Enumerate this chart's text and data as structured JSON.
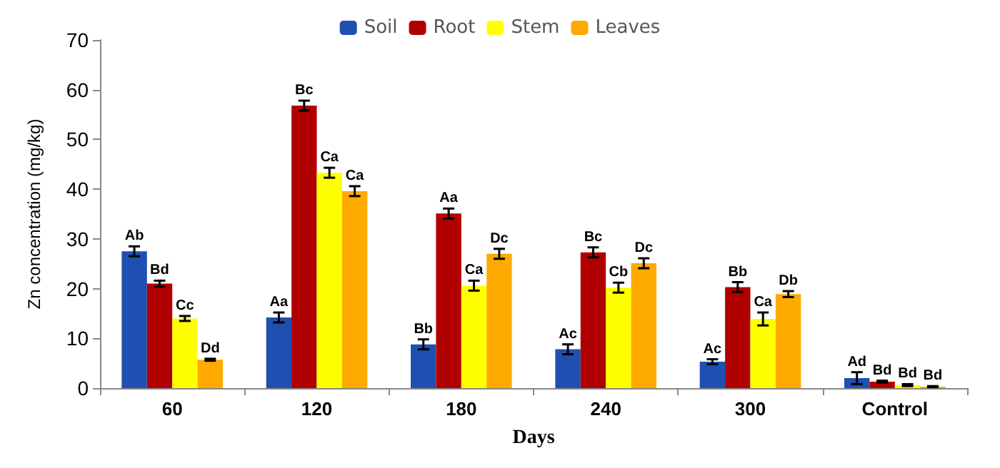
{
  "chart_data": {
    "type": "bar",
    "xlabel": "Days",
    "ylabel": "Zn concentration (mg/kg)",
    "categories": [
      "60",
      "120",
      "180",
      "240",
      "300",
      "Control"
    ],
    "series": [
      {
        "name": "Soil",
        "color": "#1f4fb0",
        "values": [
          27.5,
          14.2,
          8.8,
          7.8,
          5.3,
          2.0
        ],
        "errors": [
          1,
          1,
          1,
          1,
          0.5,
          1.2
        ],
        "value_labels": [
          "Ab",
          "Aa",
          "Bb",
          "Ac",
          "Ac",
          "Ad"
        ]
      },
      {
        "name": "Root",
        "color": "#b00000",
        "values": [
          21,
          56.8,
          35.1,
          27.3,
          20.3,
          1.3
        ],
        "errors": [
          0.6,
          1,
          1,
          1,
          1,
          0.2
        ],
        "value_labels": [
          "Bd",
          "Bc",
          "Aa",
          "Bc",
          "Bb",
          "Bd"
        ]
      },
      {
        "name": "Stem",
        "color": "#ffff00",
        "values": [
          14,
          43.3,
          20.6,
          20.2,
          13.9,
          0.6
        ],
        "errors": [
          0.5,
          1,
          1,
          1,
          1.3,
          0.2
        ],
        "value_labels": [
          "Cc",
          "Ca",
          "Ca",
          "Cb",
          "Ca",
          "Bd"
        ]
      },
      {
        "name": "Leaves",
        "color": "#ffaa00",
        "values": [
          5.7,
          39.6,
          27,
          25.1,
          18.9,
          0.3
        ],
        "errors": [
          0.2,
          1,
          1,
          1,
          0.6,
          0.1
        ],
        "value_labels": [
          "Dd",
          "Ca",
          "Dc",
          "Dc",
          "Db",
          "Bd"
        ]
      }
    ],
    "ylim": [
      0,
      70
    ],
    "yticks": [
      0,
      10,
      20,
      30,
      40,
      50,
      60,
      70
    ],
    "grid": false,
    "legend": "top"
  }
}
